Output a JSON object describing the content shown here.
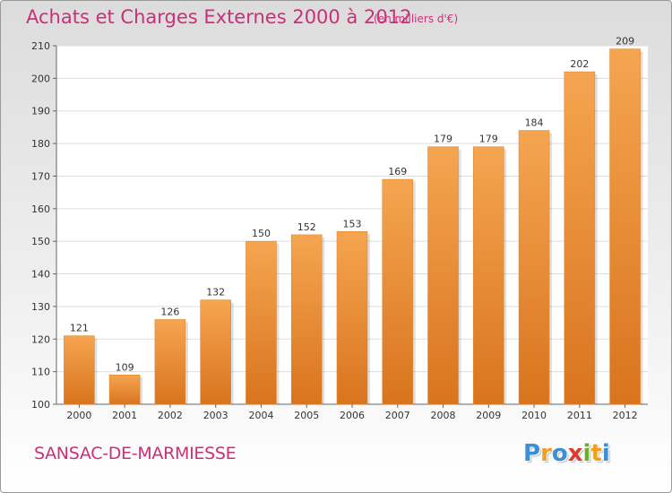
{
  "chart_data": {
    "type": "bar",
    "title": "Achats et Charges Externes 2000 à 2012",
    "subtitle": "(en milliers d'€)",
    "categories": [
      "2000",
      "2001",
      "2002",
      "2003",
      "2004",
      "2005",
      "2006",
      "2007",
      "2008",
      "2009",
      "2010",
      "2011",
      "2012"
    ],
    "values": [
      121,
      109,
      126,
      132,
      150,
      152,
      153,
      169,
      179,
      179,
      184,
      202,
      209
    ],
    "ylim": [
      100,
      210
    ],
    "yticks": [
      100,
      110,
      120,
      130,
      140,
      150,
      160,
      170,
      180,
      190,
      200,
      210
    ],
    "grid": true,
    "bar_color_top": "#f5a550",
    "bar_color_bottom": "#d9741e"
  },
  "place_name": "SANSAC-DE-MARMIESSE",
  "logo": {
    "letters": [
      "P",
      "r",
      "o",
      "x",
      "i",
      "t",
      "i"
    ],
    "colors": [
      "#3a8fd6",
      "#f0a020",
      "#3a8fd6",
      "#e03a2e",
      "#6ab02e",
      "#f0a020",
      "#3a8fd6"
    ]
  }
}
